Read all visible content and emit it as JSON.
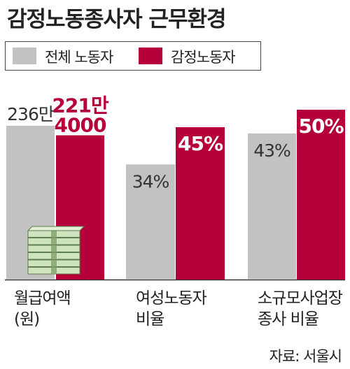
{
  "title": "감정노동종사자 근무환경",
  "legend": [
    {
      "label": "전체 노동자",
      "color": "#c2c2c2"
    },
    {
      "label": "감정노동자",
      "color": "#b5003a"
    }
  ],
  "source": "자료: 서울시",
  "chart_data": [
    {
      "type": "bar",
      "category": [
        "월급여액",
        "(원)"
      ],
      "series": [
        {
          "name": "전체 노동자",
          "value": 2360000,
          "label": [
            "236만"
          ]
        },
        {
          "name": "감정노동자",
          "value": 2214000,
          "label": [
            "221만",
            "4000"
          ]
        }
      ]
    },
    {
      "type": "bar",
      "category": [
        "여성노동자",
        "비율"
      ],
      "series": [
        {
          "name": "전체 노동자",
          "value": 34,
          "label": [
            "34%"
          ]
        },
        {
          "name": "감정노동자",
          "value": 45,
          "label": [
            "45%"
          ]
        }
      ]
    },
    {
      "type": "bar",
      "category": [
        "소규모사업장",
        "종사 비율"
      ],
      "series": [
        {
          "name": "전체 노동자",
          "value": 43,
          "label": [
            "43%"
          ]
        },
        {
          "name": "감정노동자",
          "value": 50,
          "label": [
            "50%"
          ]
        }
      ]
    }
  ],
  "icons": [
    "money-stack-icon"
  ]
}
